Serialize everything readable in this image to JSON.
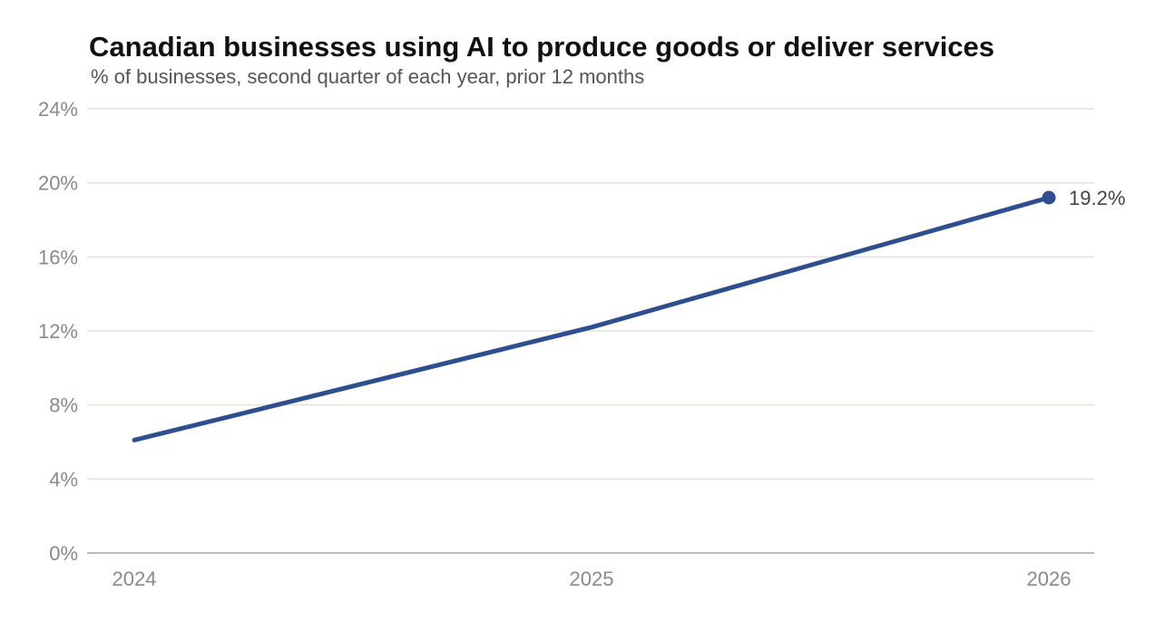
{
  "chart_data": {
    "type": "line",
    "title": "Canadian businesses using AI to produce goods or deliver services",
    "subtitle": "% of businesses, second quarter of each year, prior 12 months",
    "x": [
      "2024",
      "2025",
      "2026"
    ],
    "series": [
      {
        "values": [
          6.1,
          12.2,
          19.2
        ],
        "color": "#2e4f8f"
      }
    ],
    "end_label": "19.2%",
    "ylim": [
      0,
      24
    ],
    "yticks": [
      0,
      4,
      8,
      12,
      16,
      20,
      24
    ],
    "ytick_labels": [
      "0%",
      "4%",
      "8%",
      "12%",
      "16%",
      "20%",
      "24%"
    ],
    "grid": true,
    "legend": "none"
  }
}
